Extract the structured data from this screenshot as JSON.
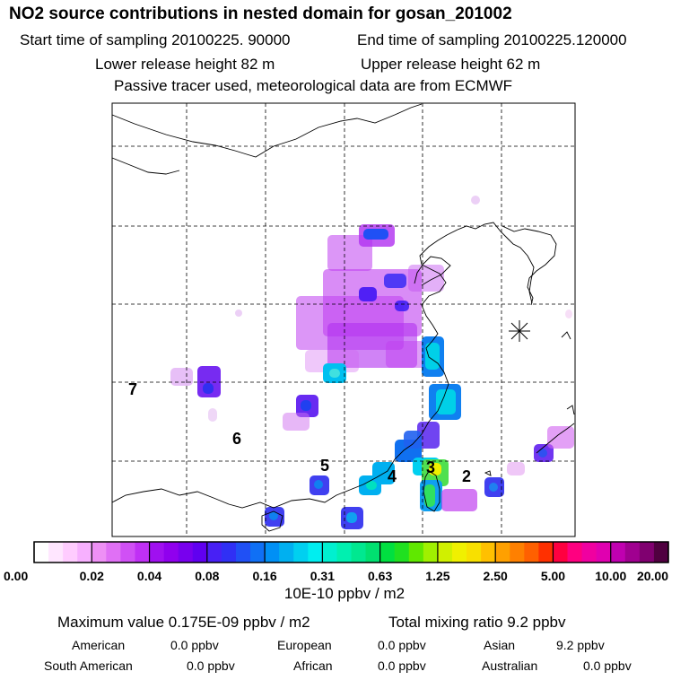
{
  "header": {
    "title": "NO2 source contributions in nested domain for gosan_201002",
    "start_time": "Start time of sampling 20100225. 90000",
    "end_time": "End time of sampling 20100225.120000",
    "lower_height": "Lower release height   82 m",
    "upper_height": "Upper release height   62 m",
    "tracer_note": "Passive tracer used, meteorological data are from ECMWF"
  },
  "chart_data": {
    "type": "heatmap",
    "title": "NO2 source contributions in nested domain for gosan_201002",
    "units": "10E-10 ppbv / m2",
    "colorbar_ticks": [
      "0.00",
      "0.02",
      "0.04",
      "0.08",
      "0.16",
      "0.31",
      "0.63",
      "1.25",
      "2.50",
      "5.00",
      "10.00",
      "20.00"
    ],
    "colorbar_colors": [
      "#ffffff",
      "#ffe6ff",
      "#ffccff",
      "#f7b0ff",
      "#ee90f5",
      "#e070f5",
      "#d050f5",
      "#c030f5",
      "#a010f0",
      "#9000ee",
      "#7800ee",
      "#6000f0",
      "#4820f5",
      "#3030f5",
      "#2050f5",
      "#1070f5",
      "#0090f5",
      "#00b0f0",
      "#00d0f0",
      "#00eef0",
      "#00f0d0",
      "#00f0b0",
      "#00e890",
      "#00e070",
      "#00e040",
      "#20e020",
      "#60e800",
      "#a0f000",
      "#d0f000",
      "#f0f000",
      "#f8e000",
      "#ffc000",
      "#ffa000",
      "#ff8000",
      "#ff6000",
      "#ff3000",
      "#ff0040",
      "#ff0080",
      "#f000a0",
      "#e000b0",
      "#c000b0",
      "#a00090",
      "#800070",
      "#500040"
    ],
    "region_labels": [
      "7",
      "6",
      "5",
      "4",
      "3",
      "2"
    ],
    "max_value": "Maximum value  0.175E-09 ppbv / m2",
    "total_mixing": "Total mixing ratio        9.2 ppbv",
    "contributions": [
      {
        "name": "American",
        "value": "0.0 ppbv"
      },
      {
        "name": "European",
        "value": "0.0 ppbv"
      },
      {
        "name": "Asian",
        "value": "9.2 ppbv"
      },
      {
        "name": "South American",
        "value": "0.0 ppbv"
      },
      {
        "name": "African",
        "value": "0.0 ppbv"
      },
      {
        "name": "Australian",
        "value": "0.0 ppbv"
      }
    ]
  }
}
